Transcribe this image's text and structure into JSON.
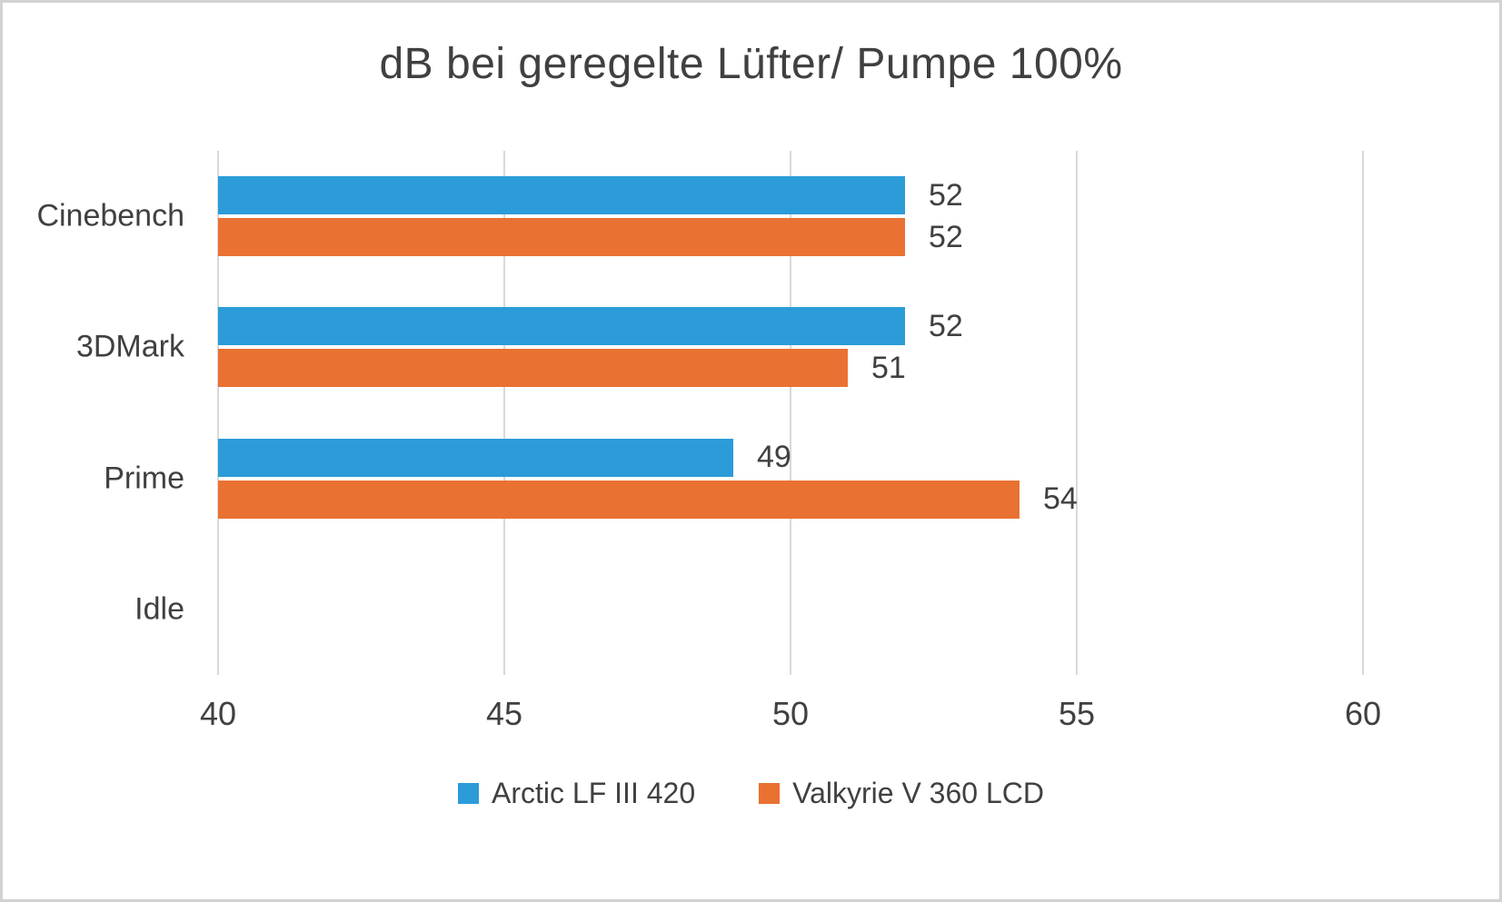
{
  "chart_data": {
    "type": "bar",
    "orientation": "horizontal",
    "title": "dB bei geregelte Lüfter/ Pumpe 100%",
    "categories": [
      "Cinebench",
      "3DMark",
      "Prime",
      "Idle"
    ],
    "series": [
      {
        "name": "Arctic LF III 420",
        "color": "#2B9CD8",
        "values": [
          52,
          52,
          49,
          null
        ]
      },
      {
        "name": "Valkyrie V 360 LCD",
        "color": "#E97132",
        "values": [
          52,
          51,
          54,
          null
        ]
      }
    ],
    "xlabel": "",
    "ylabel": "",
    "xlim": [
      40,
      60
    ],
    "xticks": [
      40,
      45,
      50,
      55,
      60
    ],
    "grid": true,
    "legend_position": "bottom",
    "data_labels": true,
    "colors": {
      "text": "#404040",
      "gridline": "#d9d9d9",
      "background": "#ffffff",
      "border": "#d2d2d2"
    }
  }
}
